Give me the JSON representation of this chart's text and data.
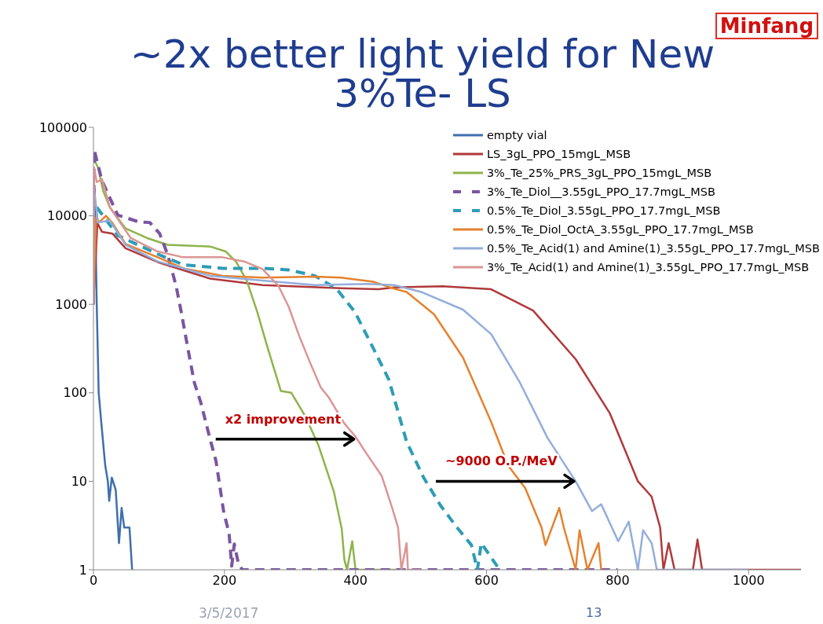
{
  "chart_data": {
    "type": "line",
    "title": "~2x better light yield for New 3%Te- LS",
    "log": "y",
    "xlim": [
      0,
      1080
    ],
    "xticks": [
      0,
      200,
      400,
      600,
      800,
      1000
    ],
    "ylim": [
      1,
      100000
    ],
    "yticks": [
      1,
      10,
      100,
      1000,
      10000,
      100000
    ],
    "grid": false,
    "legend": "top right",
    "series": [
      {
        "name": "empty vial",
        "color": "#3f6fad",
        "x": [
          0,
          2,
          5,
          8,
          12,
          18,
          22,
          24,
          28,
          34,
          39,
          43,
          47,
          55,
          59
        ],
        "values": [
          1000,
          20000,
          1000,
          100,
          46,
          15,
          10,
          6,
          11,
          8,
          2,
          5,
          3,
          3,
          1
        ]
      },
      {
        "name": "LS_3gL_PPO_15mgL_MSB",
        "color": "#b0393b",
        "x": [
          0,
          6,
          13,
          29,
          49,
          98,
          178,
          258,
          378,
          435,
          459,
          533,
          607,
          671,
          736,
          788,
          831,
          852,
          865,
          870,
          878,
          887,
          915,
          922,
          929,
          1080
        ],
        "values": [
          1000,
          8300,
          6600,
          6300,
          4300,
          3000,
          1950,
          1650,
          1520,
          1480,
          1550,
          1600,
          1480,
          850,
          240,
          59,
          10,
          6.7,
          3,
          1,
          2,
          1,
          1,
          2.2,
          1,
          1
        ]
      },
      {
        "name": "3%_Te_25%_PRS_3gL_PPO_15mgL_MSB",
        "color": "#8db44b",
        "x": [
          0,
          7,
          15,
          25,
          49,
          82,
          113,
          178,
          202,
          218,
          234,
          250,
          266,
          286,
          302,
          323,
          343,
          359,
          367,
          379,
          383,
          387,
          395,
          400,
          470
        ],
        "values": [
          45000,
          35000,
          19000,
          12500,
          7200,
          5600,
          4700,
          4500,
          3950,
          3000,
          1850,
          820,
          320,
          105,
          100,
          55,
          26,
          11.5,
          7.6,
          2.9,
          1.3,
          1,
          2.1,
          1,
          1
        ]
      },
      {
        "name": "3%_Te_Diol__3.55gL_PPO_17.7mgL_MSB",
        "color": "#7a55a0",
        "line_style": "dashed",
        "x": [
          0,
          1,
          13,
          37,
          70,
          86,
          101,
          113,
          126,
          134,
          144,
          154,
          164,
          178,
          187,
          193,
          199,
          207,
          211,
          215,
          221,
          227,
          800
        ],
        "values": [
          1000,
          56000,
          25000,
          10200,
          8500,
          8400,
          6300,
          3700,
          1630,
          820,
          320,
          130,
          77,
          30,
          17,
          8.7,
          4.4,
          2.6,
          1.1,
          1.95,
          1.2,
          1,
          1
        ]
      },
      {
        "name": "0.5%_Te_Diol_3.55gL_PPO_17.7mgL_MSB",
        "color": "#2e9cb5",
        "line_style": "dashed",
        "x": [
          5,
          37,
          98,
          137,
          197,
          258,
          298,
          338,
          371,
          399,
          427,
          451,
          478,
          504,
          530,
          555,
          577,
          586,
          592,
          620
        ],
        "values": [
          12500,
          6000,
          3700,
          2800,
          2550,
          2550,
          2450,
          2100,
          1500,
          820,
          320,
          140,
          28,
          11,
          5.3,
          3,
          1.9,
          1,
          2,
          1
        ]
      },
      {
        "name": "0.5%_Te_Diol_OctA_3.55gL_PPO_17.7mgL_MSB",
        "color": "#e5822e",
        "x": [
          0,
          4,
          9,
          19,
          29,
          49,
          98,
          137,
          197,
          258,
          338,
          378,
          427,
          459,
          478,
          520,
          564,
          607,
          633,
          659,
          684,
          690,
          711,
          718,
          736,
          742,
          754,
          771,
          775
        ],
        "values": [
          1000,
          9500,
          8500,
          10000,
          8300,
          4800,
          3400,
          2550,
          2100,
          2000,
          2050,
          2000,
          1800,
          1500,
          1380,
          770,
          250,
          47,
          15,
          8.4,
          3,
          1.9,
          5,
          3,
          1,
          2.8,
          1,
          2,
          1
        ]
      },
      {
        "name": "0.5%_Te_Acid(1) and Amine(1)_3.55gL_PPO_17.7mgL_MSB",
        "color": "#93aedb",
        "x": [
          0,
          1,
          7,
          25,
          49,
          98,
          178,
          258,
          338,
          418,
          459,
          500,
          564,
          607,
          651,
          693,
          736,
          761,
          775,
          801,
          817,
          831,
          839,
          852,
          860,
          1000
        ],
        "values": [
          1000,
          20000,
          8400,
          8800,
          4700,
          3050,
          2100,
          1850,
          1650,
          1700,
          1650,
          1380,
          870,
          460,
          130,
          31,
          10,
          4.6,
          5.5,
          2.1,
          3.5,
          1,
          2.8,
          2,
          1,
          1
        ]
      },
      {
        "name": "3%_Te_Acid(1) and Amine(1)_3.55gL_PPO_17.7mgL_MSB",
        "color": "#db9593",
        "x": [
          0,
          1,
          5,
          13,
          25,
          57,
          98,
          137,
          197,
          230,
          258,
          282,
          298,
          314,
          330,
          347,
          359,
          383,
          400,
          416,
          440,
          456,
          465,
          470,
          478,
          480,
          500
        ],
        "values": [
          1000,
          35000,
          24000,
          26000,
          12500,
          5600,
          3950,
          3400,
          3400,
          3050,
          2500,
          1630,
          940,
          440,
          225,
          115,
          89,
          45,
          32,
          21,
          11.5,
          5,
          3,
          1,
          2,
          1,
          1
        ]
      }
    ],
    "annotations": [
      "Minfang",
      {
        "text": "x2 improvement",
        "x": 400,
        "y": 30
      },
      {
        "text": "~9000 O.P./MeV",
        "x": 736,
        "y": 10
      },
      "3/5/2017",
      "13"
    ]
  }
}
